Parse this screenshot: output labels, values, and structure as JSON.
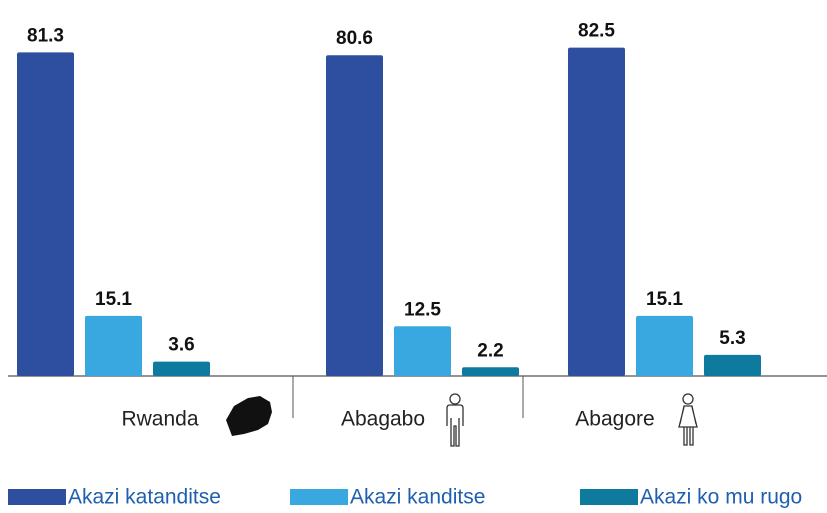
{
  "chart_data": {
    "type": "bar",
    "categories": [
      "Rwanda",
      "Abagabo",
      "Abagore"
    ],
    "series": [
      {
        "name": "Akazi katanditse",
        "color": "#2e4fa0",
        "values": [
          81.3,
          80.6,
          82.5
        ]
      },
      {
        "name": "Akazi kanditse",
        "color": "#3aa8e0",
        "values": [
          15.1,
          12.5,
          15.1
        ]
      },
      {
        "name": "Akazi ko mu rugo",
        "color": "#0e7a9e",
        "values": [
          3.6,
          2.2,
          5.3
        ]
      }
    ]
  }
}
